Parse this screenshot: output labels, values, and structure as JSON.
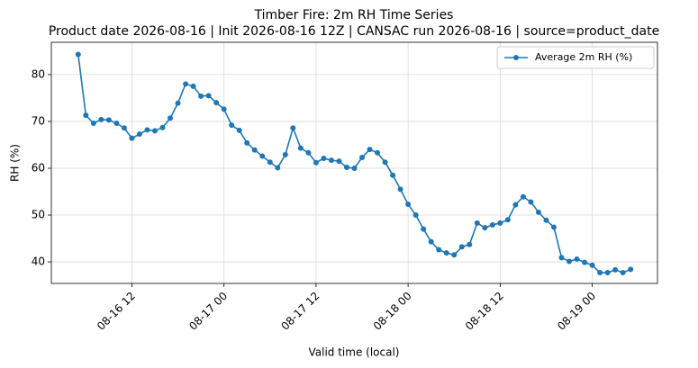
{
  "chart_data": {
    "type": "line",
    "title": "Timber Fire: 2m RH Time Series",
    "subtitle": "Product date 2026-08-16 | Init 2026-08-16 12Z | CANSAC run 2026-08-16 | source=product_date",
    "x_label": "Valid time (local)",
    "y_label": "RH (%)",
    "x": [
      "08-16 05",
      "08-16 06",
      "08-16 07",
      "08-16 08",
      "08-16 09",
      "08-16 10",
      "08-16 11",
      "08-16 12",
      "08-16 13",
      "08-16 14",
      "08-16 15",
      "08-16 16",
      "08-16 17",
      "08-16 18",
      "08-16 19",
      "08-16 20",
      "08-16 21",
      "08-16 22",
      "08-16 23",
      "08-17 00",
      "08-17 01",
      "08-17 02",
      "08-17 03",
      "08-17 04",
      "08-17 05",
      "08-17 06",
      "08-17 07",
      "08-17 08",
      "08-17 09",
      "08-17 10",
      "08-17 11",
      "08-17 12",
      "08-17 13",
      "08-17 14",
      "08-17 15",
      "08-17 16",
      "08-17 17",
      "08-17 18",
      "08-17 19",
      "08-17 20",
      "08-17 21",
      "08-17 22",
      "08-17 23",
      "08-18 00",
      "08-18 01",
      "08-18 02",
      "08-18 03",
      "08-18 04",
      "08-18 05",
      "08-18 06",
      "08-18 07",
      "08-18 08",
      "08-18 09",
      "08-18 10",
      "08-18 11",
      "08-18 12",
      "08-18 13",
      "08-18 14",
      "08-18 15",
      "08-18 16",
      "08-18 17",
      "08-18 18",
      "08-18 19",
      "08-18 20",
      "08-18 21",
      "08-18 22",
      "08-18 23",
      "08-19 00",
      "08-19 01",
      "08-19 02",
      "08-19 03",
      "08-19 04",
      "08-19 05"
    ],
    "series": [
      {
        "name": "Average 2m RH (%)",
        "color": "#1f77b4",
        "values": [
          84.3,
          71.3,
          69.6,
          70.4,
          70.3,
          69.6,
          68.6,
          66.4,
          67.3,
          68.2,
          68.0,
          68.7,
          70.7,
          73.9,
          78.0,
          77.5,
          75.4,
          75.5,
          74.0,
          72.6,
          69.2,
          68.1,
          65.4,
          63.9,
          62.6,
          61.3,
          60.1,
          62.9,
          68.6,
          64.3,
          63.3,
          61.2,
          62.1,
          61.7,
          61.5,
          60.2,
          60.0,
          62.3,
          64.0,
          63.3,
          61.3,
          58.5,
          55.5,
          52.3,
          50.0,
          47.0,
          44.3,
          42.6,
          41.9,
          41.5,
          43.2,
          43.7,
          48.3,
          47.3,
          47.9,
          48.3,
          49.0,
          52.2,
          53.9,
          52.8,
          50.6,
          48.9,
          47.4,
          40.9,
          40.1,
          40.6,
          39.9,
          39.3,
          37.7,
          37.7,
          38.3,
          37.7,
          38.4
        ]
      }
    ],
    "xlim": [
      "08-16 01:30",
      "08-19 08:30"
    ],
    "xticks": [
      "08-16 12",
      "08-17 00",
      "08-17 12",
      "08-18 00",
      "08-18 12",
      "08-19 00"
    ],
    "ylim": [
      35.4,
      86.9
    ],
    "yticks": [
      40,
      50,
      60,
      70,
      80
    ],
    "grid": true,
    "legend": "upper right"
  }
}
